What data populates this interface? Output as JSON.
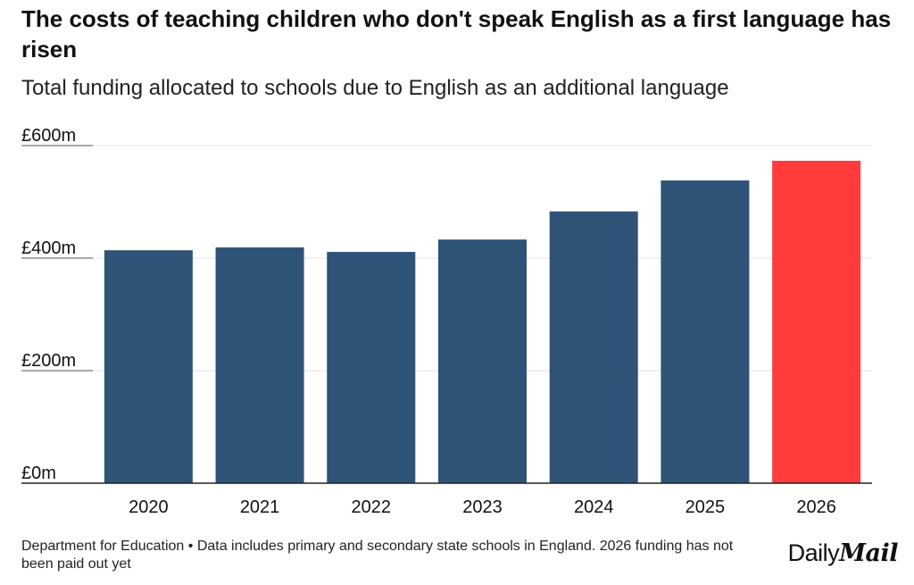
{
  "title": "The costs of teaching children who don't speak English as a first language has risen",
  "subtitle": "Total funding allocated to schools due to English as an additional language",
  "footer": "Department for Education • Data includes primary and secondary state schools in England. 2026 funding has not been paid out yet",
  "logo": {
    "part1": "Daily",
    "part2": "Mail"
  },
  "chart_data": {
    "type": "bar",
    "title": "The costs of teaching children who don't speak English as a first language has risen",
    "subtitle": "Total funding allocated to schools due to English as an additional language",
    "categories": [
      "2020",
      "2021",
      "2022",
      "2023",
      "2024",
      "2025",
      "2026"
    ],
    "values": [
      414,
      419,
      411,
      433,
      483,
      538,
      573
    ],
    "unit": "£m",
    "ylim": [
      0,
      600
    ],
    "yticks": [
      0,
      200,
      400,
      600
    ],
    "ytick_labels": [
      "£0m",
      "£200m",
      "£400m",
      "£600m"
    ],
    "grid": true,
    "colors": {
      "default": "#2e5377",
      "highlight": "#ff3b3b",
      "highlight_category": "2026"
    }
  }
}
